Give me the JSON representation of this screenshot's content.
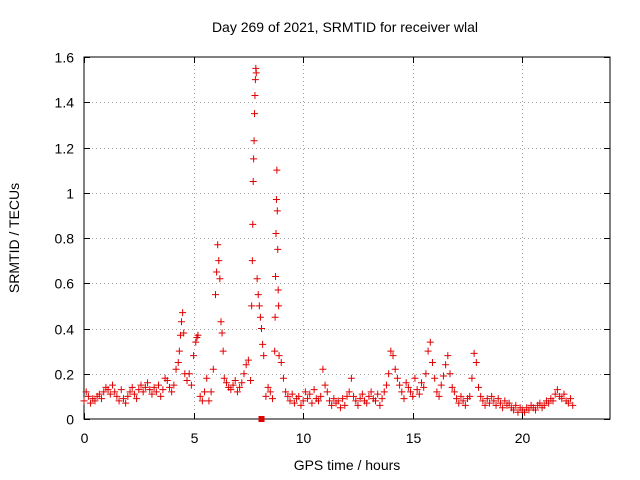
{
  "chart_data": {
    "type": "scatter",
    "title": "Day 269 of 2021, SRMTID for receiver wlal",
    "xlabel": "GPS time / hours",
    "ylabel": "SRMTID / TECUs",
    "xlim": [
      0,
      24
    ],
    "ylim": [
      0,
      1.6
    ],
    "x_ticks": [
      "0",
      "5",
      "10",
      "15",
      "20"
    ],
    "y_ticks": [
      "0",
      "0.2",
      "0.4",
      "0.6",
      "0.8",
      "1",
      "1.2",
      "1.4",
      "1.6"
    ],
    "grid": true,
    "marker": "+",
    "series": [
      {
        "name": "SRMTID",
        "color": "#e00000",
        "points": [
          [
            0.0,
            0.08
          ],
          [
            0.1,
            0.12
          ],
          [
            0.2,
            0.1
          ],
          [
            0.3,
            0.07
          ],
          [
            0.4,
            0.09
          ],
          [
            0.5,
            0.08
          ],
          [
            0.6,
            0.1
          ],
          [
            0.7,
            0.11
          ],
          [
            0.8,
            0.09
          ],
          [
            0.9,
            0.12
          ],
          [
            1.0,
            0.14
          ],
          [
            1.1,
            0.13
          ],
          [
            1.2,
            0.11
          ],
          [
            1.3,
            0.15
          ],
          [
            1.4,
            0.12
          ],
          [
            1.5,
            0.1
          ],
          [
            1.6,
            0.08
          ],
          [
            1.7,
            0.13
          ],
          [
            1.8,
            0.09
          ],
          [
            1.9,
            0.07
          ],
          [
            2.0,
            0.1
          ],
          [
            2.1,
            0.12
          ],
          [
            2.2,
            0.14
          ],
          [
            2.3,
            0.11
          ],
          [
            2.4,
            0.09
          ],
          [
            2.5,
            0.13
          ],
          [
            2.6,
            0.15
          ],
          [
            2.7,
            0.12
          ],
          [
            2.8,
            0.14
          ],
          [
            2.9,
            0.16
          ],
          [
            3.0,
            0.13
          ],
          [
            3.1,
            0.11
          ],
          [
            3.2,
            0.14
          ],
          [
            3.3,
            0.12
          ],
          [
            3.4,
            0.15
          ],
          [
            3.5,
            0.1
          ],
          [
            3.6,
            0.13
          ],
          [
            3.7,
            0.18
          ],
          [
            3.8,
            0.17
          ],
          [
            3.9,
            0.14
          ],
          [
            4.0,
            0.12
          ],
          [
            4.1,
            0.15
          ],
          [
            4.2,
            0.22
          ],
          [
            4.3,
            0.25
          ],
          [
            4.35,
            0.3
          ],
          [
            4.4,
            0.37
          ],
          [
            4.45,
            0.43
          ],
          [
            4.5,
            0.47
          ],
          [
            4.55,
            0.38
          ],
          [
            4.6,
            0.2
          ],
          [
            4.7,
            0.17
          ],
          [
            4.8,
            0.2
          ],
          [
            4.9,
            0.15
          ],
          [
            5.0,
            0.28
          ],
          [
            5.1,
            0.34
          ],
          [
            5.15,
            0.36
          ],
          [
            5.2,
            0.37
          ],
          [
            5.3,
            0.1
          ],
          [
            5.4,
            0.08
          ],
          [
            5.5,
            0.12
          ],
          [
            5.6,
            0.18
          ],
          [
            5.7,
            0.08
          ],
          [
            5.8,
            0.12
          ],
          [
            5.9,
            0.22
          ],
          [
            6.0,
            0.55
          ],
          [
            6.05,
            0.65
          ],
          [
            6.1,
            0.77
          ],
          [
            6.15,
            0.7
          ],
          [
            6.2,
            0.62
          ],
          [
            6.25,
            0.43
          ],
          [
            6.3,
            0.38
          ],
          [
            6.35,
            0.3
          ],
          [
            6.4,
            0.18
          ],
          [
            6.5,
            0.16
          ],
          [
            6.6,
            0.14
          ],
          [
            6.7,
            0.13
          ],
          [
            6.8,
            0.15
          ],
          [
            6.9,
            0.17
          ],
          [
            7.0,
            0.12
          ],
          [
            7.1,
            0.14
          ],
          [
            7.2,
            0.16
          ],
          [
            7.3,
            0.2
          ],
          [
            7.4,
            0.24
          ],
          [
            7.5,
            0.26
          ],
          [
            7.6,
            0.17
          ],
          [
            7.65,
            0.5
          ],
          [
            7.68,
            0.7
          ],
          [
            7.7,
            0.86
          ],
          [
            7.72,
            1.05
          ],
          [
            7.74,
            1.15
          ],
          [
            7.76,
            1.23
          ],
          [
            7.78,
            1.35
          ],
          [
            7.8,
            1.43
          ],
          [
            7.82,
            1.5
          ],
          [
            7.84,
            1.55
          ],
          [
            7.86,
            1.53
          ],
          [
            7.9,
            0.62
          ],
          [
            7.95,
            0.55
          ],
          [
            8.0,
            0.5
          ],
          [
            8.05,
            0.45
          ],
          [
            8.1,
            0.4
          ],
          [
            8.15,
            0.33
          ],
          [
            8.2,
            0.28
          ],
          [
            8.3,
            0.1
          ],
          [
            8.4,
            0.14
          ],
          [
            8.5,
            0.12
          ],
          [
            8.6,
            0.09
          ],
          [
            8.7,
            0.3
          ],
          [
            8.72,
            0.45
          ],
          [
            8.74,
            0.63
          ],
          [
            8.76,
            0.82
          ],
          [
            8.78,
            0.97
          ],
          [
            8.8,
            1.1
          ],
          [
            8.82,
            0.92
          ],
          [
            8.84,
            0.75
          ],
          [
            8.86,
            0.57
          ],
          [
            8.88,
            0.5
          ],
          [
            8.9,
            0.28
          ],
          [
            9.0,
            0.25
          ],
          [
            9.1,
            0.18
          ],
          [
            9.2,
            0.12
          ],
          [
            9.3,
            0.1
          ],
          [
            9.4,
            0.08
          ],
          [
            9.5,
            0.11
          ],
          [
            9.6,
            0.07
          ],
          [
            9.7,
            0.09
          ],
          [
            9.8,
            0.1
          ],
          [
            9.9,
            0.06
          ],
          [
            10.0,
            0.08
          ],
          [
            10.1,
            0.12
          ],
          [
            10.2,
            0.09
          ],
          [
            10.3,
            0.11
          ],
          [
            10.4,
            0.07
          ],
          [
            10.5,
            0.13
          ],
          [
            10.6,
            0.09
          ],
          [
            10.7,
            0.08
          ],
          [
            10.8,
            0.1
          ],
          [
            10.9,
            0.22
          ],
          [
            11.0,
            0.15
          ],
          [
            11.1,
            0.12
          ],
          [
            11.2,
            0.08
          ],
          [
            11.3,
            0.06
          ],
          [
            11.4,
            0.09
          ],
          [
            11.5,
            0.07
          ],
          [
            11.6,
            0.08
          ],
          [
            11.7,
            0.05
          ],
          [
            11.8,
            0.09
          ],
          [
            11.9,
            0.06
          ],
          [
            12.0,
            0.1
          ],
          [
            12.1,
            0.12
          ],
          [
            12.2,
            0.18
          ],
          [
            12.3,
            0.1
          ],
          [
            12.4,
            0.08
          ],
          [
            12.5,
            0.06
          ],
          [
            12.6,
            0.09
          ],
          [
            12.7,
            0.11
          ],
          [
            12.8,
            0.08
          ],
          [
            12.9,
            0.07
          ],
          [
            13.0,
            0.1
          ],
          [
            13.1,
            0.12
          ],
          [
            13.2,
            0.09
          ],
          [
            13.3,
            0.08
          ],
          [
            13.4,
            0.11
          ],
          [
            13.5,
            0.06
          ],
          [
            13.6,
            0.09
          ],
          [
            13.7,
            0.12
          ],
          [
            13.8,
            0.15
          ],
          [
            13.9,
            0.2
          ],
          [
            14.0,
            0.3
          ],
          [
            14.1,
            0.28
          ],
          [
            14.2,
            0.22
          ],
          [
            14.3,
            0.18
          ],
          [
            14.4,
            0.15
          ],
          [
            14.5,
            0.12
          ],
          [
            14.6,
            0.09
          ],
          [
            14.7,
            0.16
          ],
          [
            14.8,
            0.14
          ],
          [
            14.9,
            0.12
          ],
          [
            15.0,
            0.1
          ],
          [
            15.1,
            0.18
          ],
          [
            15.2,
            0.13
          ],
          [
            15.3,
            0.11
          ],
          [
            15.4,
            0.16
          ],
          [
            15.5,
            0.14
          ],
          [
            15.6,
            0.2
          ],
          [
            15.7,
            0.3
          ],
          [
            15.8,
            0.34
          ],
          [
            15.9,
            0.25
          ],
          [
            16.0,
            0.18
          ],
          [
            16.1,
            0.12
          ],
          [
            16.2,
            0.1
          ],
          [
            16.3,
            0.15
          ],
          [
            16.4,
            0.19
          ],
          [
            16.5,
            0.24
          ],
          [
            16.6,
            0.28
          ],
          [
            16.7,
            0.2
          ],
          [
            16.8,
            0.14
          ],
          [
            16.9,
            0.12
          ],
          [
            17.0,
            0.09
          ],
          [
            17.1,
            0.07
          ],
          [
            17.2,
            0.1
          ],
          [
            17.3,
            0.08
          ],
          [
            17.4,
            0.06
          ],
          [
            17.5,
            0.09
          ],
          [
            17.6,
            0.1
          ],
          [
            17.7,
            0.18
          ],
          [
            17.8,
            0.29
          ],
          [
            17.9,
            0.25
          ],
          [
            18.0,
            0.14
          ],
          [
            18.1,
            0.1
          ],
          [
            18.2,
            0.08
          ],
          [
            18.3,
            0.06
          ],
          [
            18.4,
            0.09
          ],
          [
            18.5,
            0.07
          ],
          [
            18.6,
            0.1
          ],
          [
            18.7,
            0.08
          ],
          [
            18.8,
            0.06
          ],
          [
            18.9,
            0.09
          ],
          [
            19.0,
            0.07
          ],
          [
            19.1,
            0.05
          ],
          [
            19.2,
            0.08
          ],
          [
            19.3,
            0.06
          ],
          [
            19.4,
            0.07
          ],
          [
            19.5,
            0.05
          ],
          [
            19.6,
            0.04
          ],
          [
            19.7,
            0.06
          ],
          [
            19.8,
            0.03
          ],
          [
            19.9,
            0.05
          ],
          [
            20.0,
            0.04
          ],
          [
            20.1,
            0.03
          ],
          [
            20.2,
            0.05
          ],
          [
            20.3,
            0.04
          ],
          [
            20.4,
            0.06
          ],
          [
            20.5,
            0.05
          ],
          [
            20.6,
            0.04
          ],
          [
            20.7,
            0.06
          ],
          [
            20.8,
            0.07
          ],
          [
            20.9,
            0.05
          ],
          [
            21.0,
            0.06
          ],
          [
            21.1,
            0.08
          ],
          [
            21.2,
            0.07
          ],
          [
            21.3,
            0.09
          ],
          [
            21.4,
            0.08
          ],
          [
            21.5,
            0.11
          ],
          [
            21.6,
            0.13
          ],
          [
            21.7,
            0.1
          ],
          [
            21.8,
            0.09
          ],
          [
            21.9,
            0.11
          ],
          [
            22.0,
            0.08
          ],
          [
            22.1,
            0.07
          ],
          [
            22.2,
            0.09
          ],
          [
            22.3,
            0.06
          ]
        ]
      }
    ],
    "outlier_marker": {
      "x": 8.1,
      "y": 0.0,
      "shape": "square"
    }
  }
}
